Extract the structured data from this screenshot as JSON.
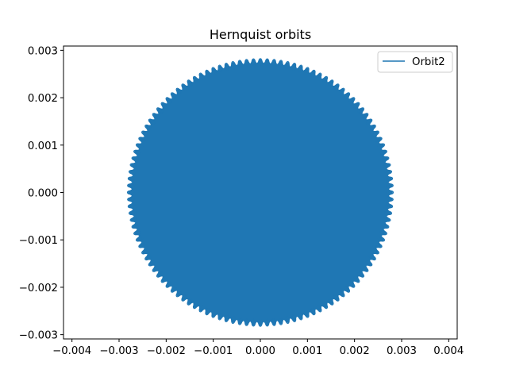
{
  "chart_data": {
    "type": "line",
    "title": "Hernquist orbits",
    "xlabel": "",
    "ylabel": "",
    "xlim": [
      -0.00418,
      0.00418
    ],
    "ylim": [
      -0.00309,
      0.00309
    ],
    "x_ticks": [
      "−0.004",
      "−0.003",
      "−0.002",
      "−0.001",
      "0.000",
      "0.001",
      "0.002",
      "0.003",
      "0.004"
    ],
    "x_tick_values": [
      -0.004,
      -0.003,
      -0.002,
      -0.001,
      0.0,
      0.001,
      0.002,
      0.003,
      0.004
    ],
    "y_ticks": [
      "−0.003",
      "−0.002",
      "−0.001",
      "0.000",
      "0.001",
      "0.002",
      "0.003"
    ],
    "y_tick_values": [
      -0.003,
      -0.002,
      -0.001,
      0.0,
      0.001,
      0.002,
      0.003
    ],
    "grid": false,
    "legend_position": "top-right",
    "series": [
      {
        "name": "Orbit2",
        "color": "#1f77b4",
        "description_values": {
          "center": [
            0.0,
            0.0
          ],
          "outer_radius": 0.0028,
          "inner_radius": 0.00272,
          "petal_count": 120
        }
      }
    ]
  }
}
